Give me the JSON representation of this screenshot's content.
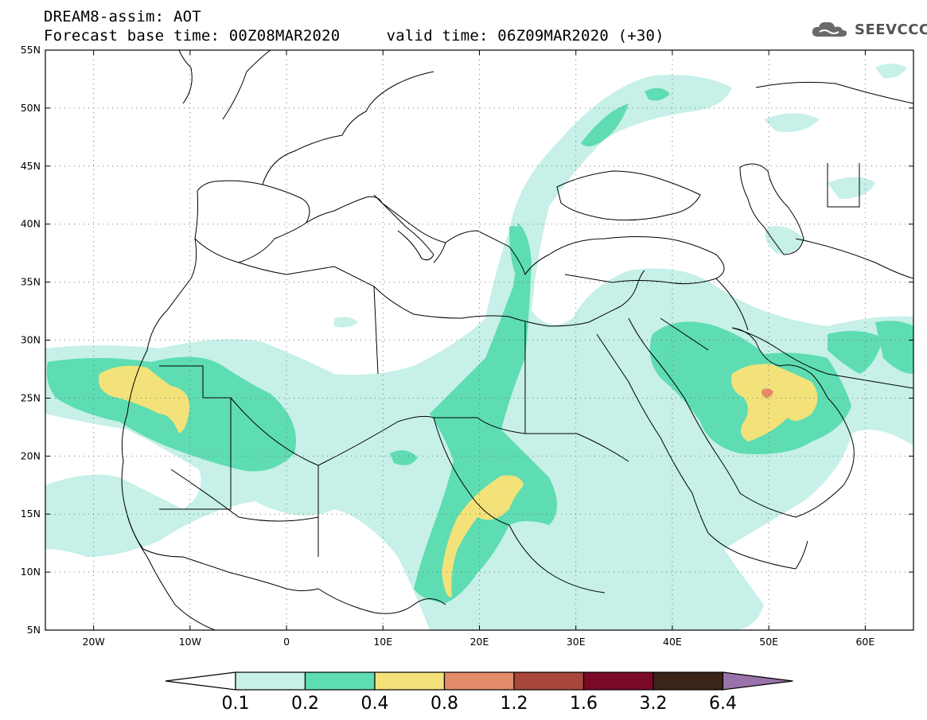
{
  "header": {
    "line1": "DREAM8-assim: AOT",
    "line2": "Forecast base time: 00Z08MAR2020     valid time: 06Z09MAR2020 (+30)",
    "logo": "SEEVCCC",
    "logo_icon": "cloud-icon"
  },
  "map": {
    "lon_range": [
      -25,
      65
    ],
    "lat_range": [
      5,
      55
    ],
    "lat_labels": [
      "55N",
      "50N",
      "45N",
      "40N",
      "35N",
      "30N",
      "25N",
      "20N",
      "15N",
      "10N",
      "5N"
    ],
    "lon_labels": [
      "20W",
      "10W",
      "0",
      "10E",
      "20E",
      "30E",
      "40E",
      "50E",
      "60E"
    ]
  },
  "colorbar": {
    "labels": [
      "0.1",
      "0.2",
      "0.4",
      "0.8",
      "1.2",
      "1.6",
      "3.2",
      "6.4"
    ],
    "colors": [
      "#c6f0e8",
      "#5edcb2",
      "#f3e27a",
      "#e48b6a",
      "#a8483c",
      "#7a0a28",
      "#3b2418",
      "#9a72aa"
    ],
    "under_color": "#ffffff"
  }
}
